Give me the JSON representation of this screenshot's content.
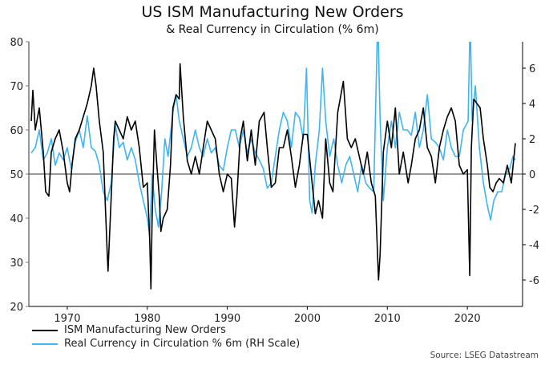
{
  "chart_data": {
    "type": "line",
    "title": "US ISM Manufacturing New Orders",
    "subtitle": "& Real Currency in Circulation (% 6m)",
    "source": "Source: LSEG Datastream",
    "xlim": [
      1965.2,
      2026.9
    ],
    "xticks": [
      1970,
      1980,
      1990,
      2000,
      2010,
      2020
    ],
    "ylim_left": [
      20,
      80
    ],
    "yticks_left": [
      20,
      30,
      40,
      50,
      60,
      70,
      80
    ],
    "ylim_right": [
      -7.5,
      7.5
    ],
    "yticks_right": [
      -6,
      -4,
      -2,
      0,
      2,
      4,
      6
    ],
    "reference_line": {
      "axis": "left",
      "value": 50
    },
    "grid": false,
    "legend": "bottom-left",
    "series": [
      {
        "name": "ISM Manufacturing New Orders",
        "axis": "left",
        "color": "#000000",
        "x": [
          1965.5,
          1965.7,
          1966,
          1966.5,
          1967,
          1967.3,
          1967.7,
          1968,
          1968.5,
          1969,
          1969.5,
          1970,
          1970.3,
          1970.6,
          1971,
          1971.5,
          1972,
          1972.5,
          1973,
          1973.3,
          1973.6,
          1974,
          1974.5,
          1975,
          1975.1,
          1975.5,
          1975.8,
          1976,
          1976.5,
          1977,
          1977.5,
          1978,
          1978.5,
          1979,
          1979.5,
          1980,
          1980.3,
          1980.45,
          1980.6,
          1980.9,
          1981.2,
          1981.5,
          1981.7,
          1982,
          1982.5,
          1982.9,
          1983.2,
          1983.6,
          1984,
          1984.1,
          1984.5,
          1985,
          1985.5,
          1986,
          1986.5,
          1987,
          1987.5,
          1988,
          1988.5,
          1989,
          1989.5,
          1990,
          1990.5,
          1990.9,
          1991.2,
          1991.6,
          1992,
          1992.5,
          1993,
          1993.5,
          1994,
          1994.6,
          1995,
          1995.5,
          1996,
          1996.5,
          1997,
          1997.5,
          1998,
          1998.5,
          1999,
          1999.5,
          2000,
          2000.6,
          2001,
          2001.4,
          2001.9,
          2002.3,
          2002.8,
          2003.2,
          2003.8,
          2004.2,
          2004.5,
          2005,
          2005.5,
          2006,
          2006.5,
          2007,
          2007.5,
          2008,
          2008.5,
          2008.9,
          2009.1,
          2009.5,
          2010,
          2010.5,
          2011,
          2011.5,
          2012,
          2012.6,
          2013,
          2013.5,
          2014,
          2014.5,
          2015,
          2015.5,
          2016,
          2016.5,
          2017,
          2017.5,
          2018,
          2018.5,
          2019,
          2019.5,
          2020,
          2020.3,
          2020.5,
          2020.8,
          2021.2,
          2021.6,
          2022,
          2022.5,
          2022.8,
          2023.2,
          2023.6,
          2024,
          2024.5,
          2025,
          2025.5,
          2026
        ],
        "values": [
          62,
          69,
          60,
          65,
          55,
          46,
          45,
          55,
          58,
          60,
          55,
          48,
          46,
          52,
          58,
          60,
          63,
          66,
          70,
          74,
          70,
          62,
          55,
          32,
          28,
          45,
          58,
          62,
          60,
          58,
          63,
          60,
          62,
          56,
          47,
          48,
          35,
          24,
          40,
          60,
          52,
          45,
          37,
          40,
          42,
          52,
          65,
          68,
          67,
          75,
          63,
          53,
          50,
          54,
          50,
          56,
          62,
          60,
          58,
          50,
          46,
          50,
          49,
          38,
          45,
          58,
          62,
          53,
          60,
          52,
          62,
          64,
          56,
          47,
          48,
          56,
          56,
          60,
          54,
          47,
          52,
          59,
          59,
          48,
          41,
          44,
          40,
          58,
          48,
          46,
          64,
          68,
          71,
          58,
          56,
          58,
          54,
          50,
          55,
          48,
          45,
          26,
          32,
          55,
          62,
          56,
          65,
          50,
          55,
          48,
          52,
          58,
          60,
          65,
          56,
          54,
          48,
          56,
          60,
          63,
          65,
          62,
          52,
          50,
          51,
          27,
          56,
          67,
          66,
          65,
          58,
          52,
          47,
          46,
          48,
          49,
          48,
          52,
          48,
          57
        ]
      },
      {
        "name": "Real Currency in Circulation % 6m (RH Scale)",
        "axis": "right",
        "color": "#3DB5F2",
        "x": [
          1965.5,
          1966,
          1966.5,
          1967,
          1967.5,
          1968,
          1968.5,
          1969,
          1969.5,
          1970,
          1970.5,
          1971,
          1971.5,
          1972,
          1972.5,
          1973,
          1973.5,
          1974,
          1974.5,
          1975,
          1975.5,
          1976,
          1976.5,
          1977,
          1977.5,
          1978,
          1978.5,
          1979,
          1979.5,
          1980,
          1980.3,
          1980.6,
          1981,
          1981.4,
          1981.8,
          1982.2,
          1982.6,
          1983.2,
          1983.6,
          1984,
          1984.5,
          1985,
          1985.5,
          1986,
          1986.5,
          1987,
          1987.5,
          1988,
          1988.5,
          1989,
          1989.5,
          1990,
          1990.5,
          1991,
          1991.5,
          1992,
          1992.5,
          1993,
          1993.5,
          1994,
          1994.5,
          1995,
          1995.5,
          1996,
          1996.5,
          1997,
          1997.5,
          1998,
          1998.5,
          1999,
          1999.5,
          1999.9,
          2000.3,
          2000.6,
          2001,
          2001.5,
          2001.9,
          2002.3,
          2002.8,
          2003.3,
          2003.8,
          2004.3,
          2004.8,
          2005.3,
          2005.8,
          2006.3,
          2006.8,
          2007.3,
          2007.8,
          2008.3,
          2008.8,
          2009.1,
          2009.5,
          2010,
          2010.5,
          2011,
          2011.5,
          2012,
          2012.5,
          2013,
          2013.5,
          2014,
          2014.5,
          2015,
          2015.5,
          2016,
          2016.5,
          2017,
          2017.5,
          2018,
          2018.5,
          2019,
          2019.5,
          2020.1,
          2020.35,
          2020.6,
          2021,
          2021.5,
          2022,
          2022.5,
          2022.9,
          2023.3,
          2023.8,
          2024.3,
          2024.8,
          2025.3,
          2025.7,
          2026
        ],
        "values": [
          1.2,
          1.5,
          2.5,
          0.8,
          1.2,
          2,
          0.5,
          1.2,
          0.8,
          1.5,
          0.3,
          1.8,
          2.5,
          1.5,
          3.3,
          1.5,
          1.3,
          0.5,
          -1,
          -1.5,
          -0.5,
          2.8,
          1.5,
          1.8,
          0.8,
          1.5,
          0.8,
          -0.5,
          -1.5,
          -2.5,
          -3.5,
          0,
          -2,
          -3,
          -1,
          2,
          1,
          3.5,
          4.5,
          3,
          2,
          1,
          1.5,
          2.5,
          1.5,
          1,
          2,
          1.2,
          1.5,
          0.5,
          0.2,
          1.5,
          2.5,
          2.5,
          1.5,
          2.5,
          1.2,
          2,
          1.2,
          0.8,
          0.3,
          -0.8,
          -0.5,
          1,
          2.5,
          3.5,
          3,
          1.5,
          3.5,
          3.2,
          2,
          6,
          -1.5,
          -2.2,
          0.5,
          2.5,
          6,
          3,
          1,
          2,
          0.5,
          -0.5,
          0.5,
          1,
          0,
          -1,
          0.5,
          -0.5,
          -0.8,
          -1,
          9,
          3,
          -1.5,
          1.5,
          3,
          1.5,
          3.5,
          2.5,
          2.5,
          2.2,
          3.5,
          1.5,
          2.5,
          4.5,
          2,
          1.8,
          1.5,
          0.8,
          2.5,
          1.5,
          1,
          1,
          2.5,
          3,
          9,
          3,
          5,
          1.5,
          -0.5,
          -1.8,
          -2.6,
          -1.5,
          -1,
          -1,
          0,
          0.3,
          1,
          0.8
        ]
      }
    ]
  }
}
